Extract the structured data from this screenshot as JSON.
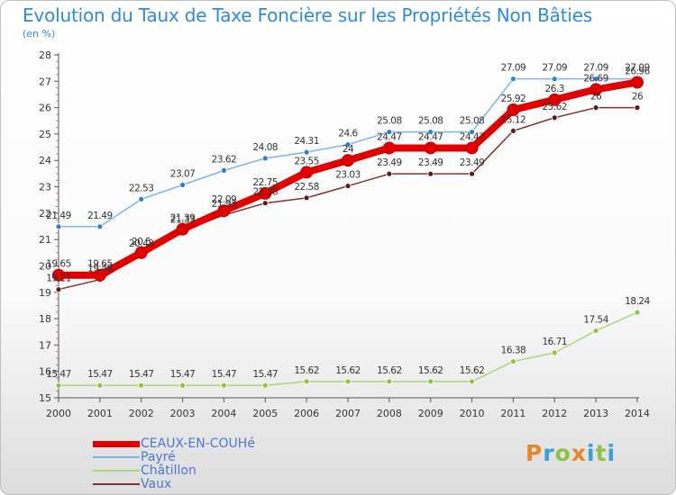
{
  "title": "Evolution du Taux de Taxe Foncière sur les Propriétés Non Bâties",
  "unit_label": "(en %)",
  "logo": {
    "letters": [
      {
        "ch": "P",
        "color": "#e8862a"
      },
      {
        "ch": "r",
        "color": "#3aa0d8"
      },
      {
        "ch": "o",
        "color": "#8bc34a"
      },
      {
        "ch": "x",
        "color": "#e8862a"
      },
      {
        "ch": "i",
        "color": "#3aa0d8"
      },
      {
        "ch": "t",
        "color": "#8bc34a"
      },
      {
        "ch": "i",
        "color": "#3aa0d8"
      }
    ]
  },
  "chart_data": {
    "type": "line",
    "x": [
      2000,
      2001,
      2002,
      2003,
      2004,
      2005,
      2006,
      2007,
      2008,
      2009,
      2010,
      2011,
      2012,
      2013,
      2014
    ],
    "ylim": [
      15,
      28
    ],
    "y_ticks": [
      15,
      16,
      17,
      18,
      19,
      20,
      21,
      22,
      23,
      24,
      25,
      26,
      27,
      28
    ],
    "grid": false,
    "legend_position": "bottom-left",
    "series": [
      {
        "name": "CEAUX-EN-COUHé",
        "color": "#e00000",
        "line_color": "#e00000",
        "values": [
          19.65,
          19.65,
          20.5,
          21.39,
          22.09,
          22.75,
          23.55,
          24,
          24.47,
          24.47,
          24.47,
          25.92,
          26.3,
          26.69,
          26.96
        ],
        "labels": [
          "19.65",
          "19.65",
          "20.5",
          "21.39",
          "22.09",
          "22.75",
          "23.55",
          "24",
          "24.47",
          "24.47",
          "24.47",
          "25.92",
          "26.3",
          "26.69",
          "26.96"
        ]
      },
      {
        "name": "Payré",
        "color": "#2e7fd0",
        "line_color": "#7fb2e6",
        "values": [
          21.49,
          21.49,
          22.53,
          23.07,
          23.62,
          24.08,
          24.31,
          24.6,
          25.08,
          25.08,
          25.08,
          27.09,
          27.09,
          27.09,
          27.09
        ],
        "labels": [
          "21.49",
          "21.49",
          "22.53",
          "23.07",
          "23.62",
          "24.08",
          "24.31",
          "24.6",
          "25.08",
          "25.08",
          "25.08",
          "27.09",
          "27.09",
          "27.09",
          "27.09"
        ]
      },
      {
        "name": "Châtillon",
        "color": "#8cc63f",
        "line_color": "#a6d87a",
        "values": [
          15.47,
          15.47,
          15.47,
          15.47,
          15.47,
          15.47,
          15.62,
          15.62,
          15.62,
          15.62,
          15.62,
          16.38,
          16.71,
          17.54,
          18.24
        ],
        "labels": [
          "15.47",
          "15.47",
          "15.47",
          "15.47",
          "15.47",
          "15.47",
          "15.62",
          "15.62",
          "15.62",
          "15.62",
          "15.62",
          "16.38",
          "16.71",
          "17.54",
          "18.24"
        ]
      },
      {
        "name": "Vaux",
        "color": "#5c1a1a",
        "line_color": "#7a3434",
        "values": [
          19.11,
          19.48,
          20.43,
          21.33,
          21.93,
          22.38,
          22.58,
          23.03,
          23.49,
          23.49,
          23.49,
          25.12,
          25.62,
          26,
          26
        ],
        "labels": [
          "19.11",
          "19.48",
          "20.43",
          "21.33",
          "21.93",
          "22.38",
          "22.58",
          "23.03",
          "23.49",
          "23.49",
          "23.49",
          "25.12",
          "25.62",
          "26",
          "26"
        ]
      }
    ]
  }
}
